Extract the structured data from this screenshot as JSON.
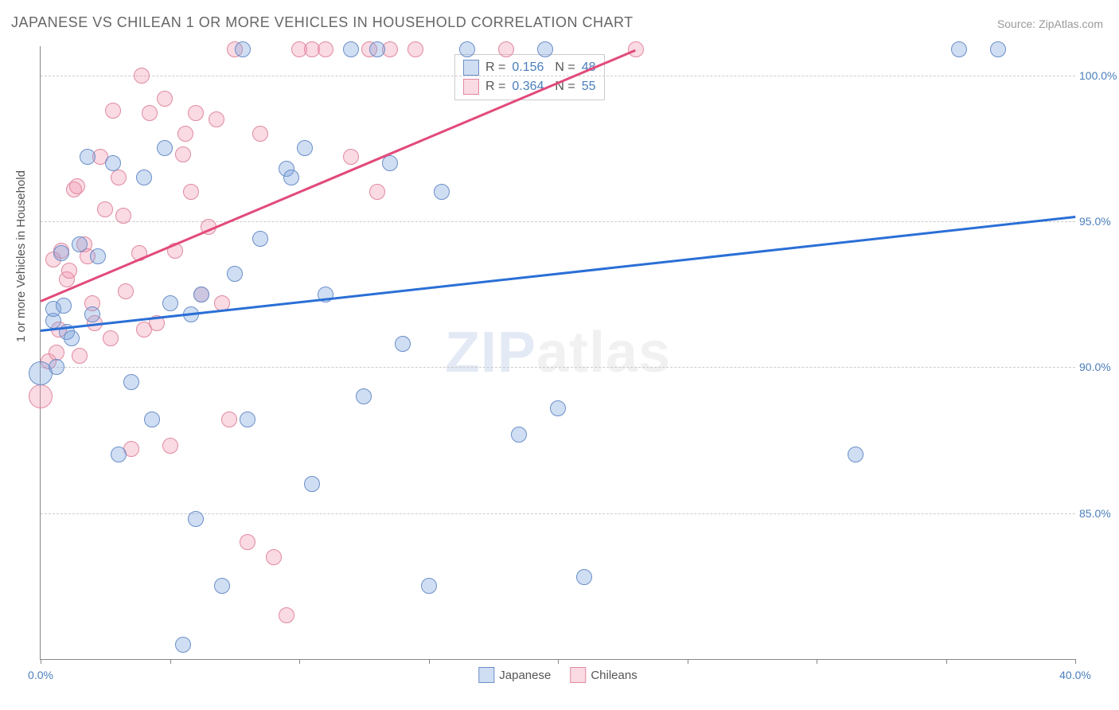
{
  "title": "JAPANESE VS CHILEAN 1 OR MORE VEHICLES IN HOUSEHOLD CORRELATION CHART",
  "source_label": "Source: ZipAtlas.com",
  "ylabel": "1 or more Vehicles in Household",
  "watermark_zip": "ZIP",
  "watermark_atlas": "atlas",
  "chart": {
    "type": "scatter",
    "xlim": [
      0,
      40
    ],
    "ylim": [
      80,
      101
    ],
    "y_ticks": [
      85.0,
      90.0,
      95.0,
      100.0
    ],
    "y_tick_labels": [
      "85.0%",
      "90.0%",
      "95.0%",
      "100.0%"
    ],
    "x_ticks": [
      0,
      5,
      10,
      15,
      20,
      25,
      30,
      35,
      40
    ],
    "x_tick_labels_shown": {
      "0": "0.0%",
      "40": "40.0%"
    },
    "background_color": "#ffffff",
    "grid_color": "#cccccc",
    "axis_label_color": "#4a7ebb",
    "marker_radius": 9,
    "marker_radius_large": 14,
    "series": {
      "japanese": {
        "label": "Japanese",
        "fill": "rgba(120,160,220,0.35)",
        "stroke": "#6a8fc8",
        "trend_color": "#2a6fd6",
        "R": 0.156,
        "N": 48,
        "trend_start": [
          0,
          91.3
        ],
        "trend_end": [
          40,
          95.2
        ],
        "points": [
          [
            0.0,
            89.8,
            14
          ],
          [
            0.5,
            91.6,
            9
          ],
          [
            0.6,
            90.0,
            9
          ],
          [
            0.5,
            92.0,
            9
          ],
          [
            0.8,
            93.9,
            9
          ],
          [
            0.9,
            92.1,
            9
          ],
          [
            1.0,
            91.2,
            9
          ],
          [
            1.2,
            91.0,
            9
          ],
          [
            1.5,
            94.2,
            9
          ],
          [
            1.8,
            97.2,
            9
          ],
          [
            2.0,
            91.8,
            9
          ],
          [
            2.2,
            93.8,
            9
          ],
          [
            2.8,
            97.0,
            9
          ],
          [
            3.0,
            87.0,
            9
          ],
          [
            3.5,
            89.5,
            9
          ],
          [
            4.0,
            96.5,
            9
          ],
          [
            4.3,
            88.2,
            9
          ],
          [
            4.8,
            97.5,
            9
          ],
          [
            5.0,
            92.2,
            9
          ],
          [
            5.5,
            80.5,
            9
          ],
          [
            5.8,
            91.8,
            9
          ],
          [
            6.0,
            84.8,
            9
          ],
          [
            6.2,
            92.5,
            9
          ],
          [
            7.0,
            82.5,
            9
          ],
          [
            7.5,
            93.2,
            9
          ],
          [
            7.8,
            100.9,
            9
          ],
          [
            8.0,
            88.2,
            9
          ],
          [
            8.5,
            94.4,
            9
          ],
          [
            9.5,
            96.8,
            9
          ],
          [
            9.7,
            96.5,
            9
          ],
          [
            10.2,
            97.5,
            9
          ],
          [
            10.5,
            86.0,
            9
          ],
          [
            11.0,
            92.5,
            9
          ],
          [
            12.0,
            100.9,
            9
          ],
          [
            12.5,
            89.0,
            9
          ],
          [
            13.0,
            100.9,
            9
          ],
          [
            13.5,
            97.0,
            9
          ],
          [
            14.0,
            90.8,
            9
          ],
          [
            15.0,
            82.5,
            9
          ],
          [
            15.5,
            96.0,
            9
          ],
          [
            16.5,
            100.9,
            9
          ],
          [
            18.5,
            87.7,
            9
          ],
          [
            19.5,
            100.9,
            9
          ],
          [
            20.0,
            88.6,
            9
          ],
          [
            21.0,
            82.8,
            9
          ],
          [
            31.5,
            87.0,
            9
          ],
          [
            35.5,
            100.9,
            9
          ],
          [
            37.0,
            100.9,
            9
          ]
        ]
      },
      "chileans": {
        "label": "Chileans",
        "fill": "rgba(240,150,175,0.35)",
        "stroke": "#e08aa0",
        "trend_color": "#e24a7a",
        "R": 0.364,
        "N": 55,
        "trend_start": [
          0,
          92.3
        ],
        "trend_end": [
          23,
          100.9
        ],
        "points": [
          [
            0.0,
            89.0,
            14
          ],
          [
            0.3,
            90.2,
            9
          ],
          [
            0.5,
            93.7,
            9
          ],
          [
            0.6,
            90.5,
            9
          ],
          [
            0.7,
            91.3,
            9
          ],
          [
            0.8,
            94.0,
            9
          ],
          [
            1.0,
            93.0,
            9
          ],
          [
            1.1,
            93.3,
            9
          ],
          [
            1.3,
            96.1,
            9
          ],
          [
            1.4,
            96.2,
            9
          ],
          [
            1.5,
            90.4,
            9
          ],
          [
            1.7,
            94.2,
            9
          ],
          [
            1.8,
            93.8,
            9
          ],
          [
            2.0,
            92.2,
            9
          ],
          [
            2.1,
            91.5,
            9
          ],
          [
            2.3,
            97.2,
            9
          ],
          [
            2.5,
            95.4,
            9
          ],
          [
            2.7,
            91.0,
            9
          ],
          [
            2.8,
            98.8,
            9
          ],
          [
            3.0,
            96.5,
            9
          ],
          [
            3.2,
            95.2,
            9
          ],
          [
            3.3,
            92.6,
            9
          ],
          [
            3.5,
            87.2,
            9
          ],
          [
            3.8,
            93.9,
            9
          ],
          [
            3.9,
            100.0,
            9
          ],
          [
            4.0,
            91.3,
            9
          ],
          [
            4.2,
            98.7,
            9
          ],
          [
            4.5,
            91.5,
            9
          ],
          [
            4.8,
            99.2,
            9
          ],
          [
            5.0,
            87.3,
            9
          ],
          [
            5.2,
            94.0,
            9
          ],
          [
            5.5,
            97.3,
            9
          ],
          [
            5.6,
            98.0,
            9
          ],
          [
            5.8,
            96.0,
            9
          ],
          [
            6.0,
            98.7,
            9
          ],
          [
            6.2,
            92.5,
            9
          ],
          [
            6.5,
            94.8,
            9
          ],
          [
            6.8,
            98.5,
            9
          ],
          [
            7.0,
            92.2,
            9
          ],
          [
            7.3,
            88.2,
            9
          ],
          [
            7.5,
            100.9,
            9
          ],
          [
            8.0,
            84.0,
            9
          ],
          [
            8.5,
            98.0,
            9
          ],
          [
            9.0,
            83.5,
            9
          ],
          [
            9.5,
            81.5,
            9
          ],
          [
            10.0,
            100.9,
            9
          ],
          [
            10.5,
            100.9,
            9
          ],
          [
            11.0,
            100.9,
            9
          ],
          [
            12.0,
            97.2,
            9
          ],
          [
            12.7,
            100.9,
            9
          ],
          [
            13.0,
            96.0,
            9
          ],
          [
            13.5,
            100.9,
            9
          ],
          [
            14.5,
            100.9,
            9
          ],
          [
            18.0,
            100.9,
            9
          ],
          [
            23.0,
            100.9,
            9
          ]
        ]
      }
    }
  },
  "legend_top": {
    "R_label": "R  =",
    "N_label": "N  =",
    "row1_R": "0.156",
    "row1_N": "48",
    "row2_R": "0.364",
    "row2_N": "55"
  },
  "legend_bottom": {
    "item1": "Japanese",
    "item2": "Chileans"
  }
}
